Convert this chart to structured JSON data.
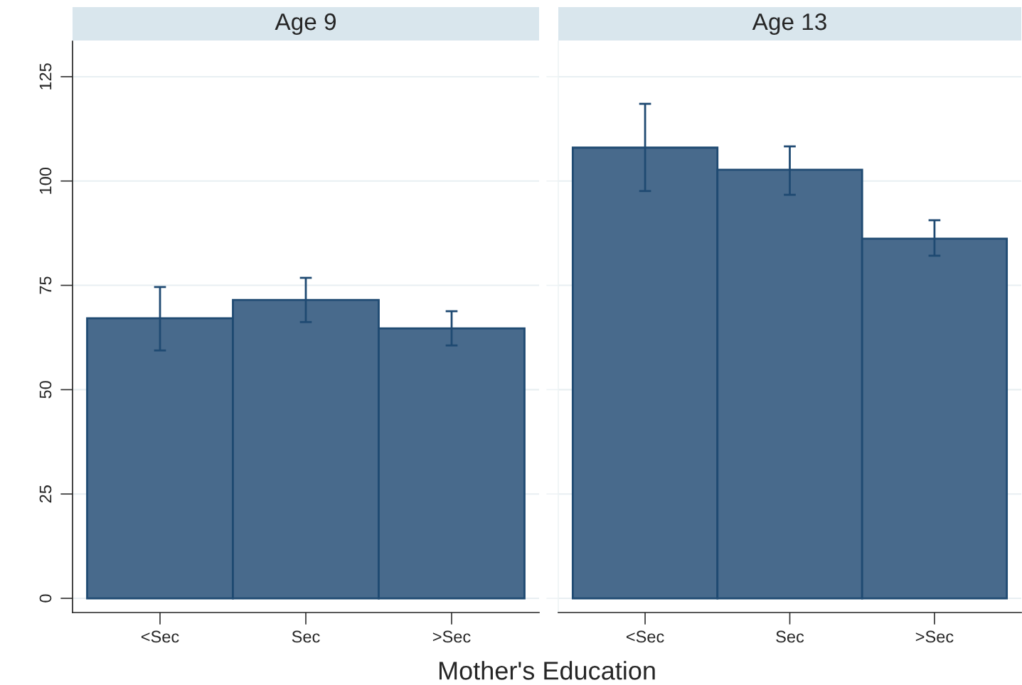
{
  "chart_data": [
    {
      "type": "bar",
      "title": "Age 9",
      "xlabel": "Mother's Education",
      "categories": [
        "<Sec",
        "Sec",
        ">Sec"
      ],
      "values": [
        67.1,
        71.5,
        64.7
      ],
      "color": "#486a8c",
      "errors": [
        [
          59.4,
          74.6
        ],
        [
          66.2,
          76.8
        ],
        [
          60.6,
          68.8
        ]
      ],
      "ylim": [
        -3.4,
        133.5
      ],
      "yticks": [
        0,
        25,
        50,
        75,
        100,
        125
      ],
      "grid": "y"
    },
    {
      "type": "bar",
      "title": "Age 13",
      "categories": [
        "<Sec",
        "Sec",
        ">Sec"
      ],
      "values": [
        108.0,
        102.7,
        86.2
      ],
      "color": "#486a8c",
      "errors": [
        [
          97.6,
          118.5
        ],
        [
          96.7,
          108.3
        ],
        [
          82.1,
          90.6
        ]
      ],
      "ylim": [
        -3.4,
        133.5
      ],
      "yticks": [
        0,
        25,
        50,
        75,
        100,
        125
      ],
      "grid": "y",
      "tick_labels": "x"
    }
  ]
}
